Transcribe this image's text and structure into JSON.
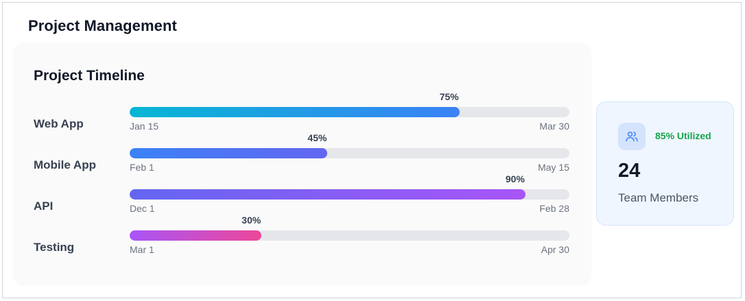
{
  "page": {
    "title": "Project Management"
  },
  "timeline": {
    "title": "Project Timeline",
    "projects": [
      {
        "name": "Web App",
        "progress": 75,
        "progress_label": "75%",
        "start": "Jan 15",
        "end": "Mar 30",
        "gradient": [
          "#06b6d4",
          "#3b82f6"
        ]
      },
      {
        "name": "Mobile App",
        "progress": 45,
        "progress_label": "45%",
        "start": "Feb 1",
        "end": "May 15",
        "gradient": [
          "#3b82f6",
          "#6366f1"
        ]
      },
      {
        "name": "API",
        "progress": 90,
        "progress_label": "90%",
        "start": "Dec 1",
        "end": "Feb 28",
        "gradient": [
          "#6366f1",
          "#a855f7"
        ]
      },
      {
        "name": "Testing",
        "progress": 30,
        "progress_label": "30%",
        "start": "Mar 1",
        "end": "Apr 30",
        "gradient": [
          "#a855f7",
          "#ec4899"
        ]
      }
    ],
    "track_color": "#e5e7eb"
  },
  "team": {
    "icon": "users-icon",
    "utilization": "85% Utilized",
    "count": "24",
    "label": "Team Members",
    "accent": "#16a34a"
  }
}
